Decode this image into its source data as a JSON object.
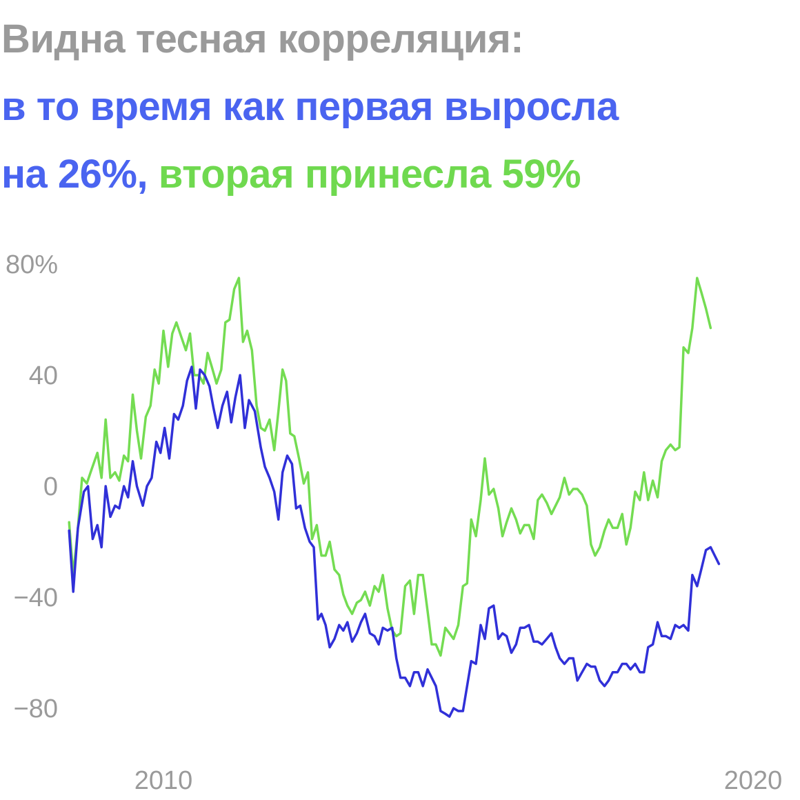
{
  "title": {
    "line1": "Видна тесная корреляция:",
    "line2": "в то время как первая выросла",
    "line3_blue": "на 26%,",
    "line3_green": "вторая принесла 59%"
  },
  "colors": {
    "blue_series": "#3030d8",
    "green_series": "#74dc52",
    "title_gray": "#9a9a9a",
    "title_blue": "#4a64f0",
    "title_green": "#6fd94f",
    "tick": "#9a9a9a"
  },
  "chart_data": {
    "type": "line",
    "title": "",
    "xlabel": "",
    "ylabel": "",
    "ylim": [
      -80,
      80
    ],
    "xlim": [
      2008.3,
      2020.5
    ],
    "y_ticks": [
      "80%",
      "40",
      "0",
      "−40",
      "−80"
    ],
    "y_tick_values": [
      80,
      40,
      0,
      -40,
      -80
    ],
    "x_ticks": [
      "2010",
      "2020"
    ],
    "x_tick_values": [
      2010,
      2020
    ],
    "grid": false,
    "legend": "none",
    "series": [
      {
        "values": [
          [
            2008.4,
            -16
          ],
          [
            2008.47,
            -38
          ],
          [
            2008.55,
            -15
          ],
          [
            2008.65,
            -2
          ],
          [
            2008.72,
            0
          ],
          [
            2008.8,
            -19
          ],
          [
            2008.88,
            -14
          ],
          [
            2008.95,
            -22
          ],
          [
            2009.02,
            0
          ],
          [
            2009.1,
            -11
          ],
          [
            2009.18,
            -7
          ],
          [
            2009.25,
            -8
          ],
          [
            2009.33,
            0
          ],
          [
            2009.4,
            -4
          ],
          [
            2009.48,
            9
          ],
          [
            2009.55,
            0
          ],
          [
            2009.65,
            -7
          ],
          [
            2009.72,
            0
          ],
          [
            2009.8,
            3
          ],
          [
            2009.88,
            16
          ],
          [
            2009.95,
            12
          ],
          [
            2010.02,
            21
          ],
          [
            2010.1,
            10
          ],
          [
            2010.18,
            26
          ],
          [
            2010.25,
            24
          ],
          [
            2010.33,
            29
          ],
          [
            2010.4,
            38
          ],
          [
            2010.48,
            43
          ],
          [
            2010.55,
            28
          ],
          [
            2010.62,
            42
          ],
          [
            2010.7,
            40
          ],
          [
            2010.78,
            36
          ],
          [
            2010.85,
            28
          ],
          [
            2010.92,
            21
          ],
          [
            2011.0,
            29
          ],
          [
            2011.08,
            34
          ],
          [
            2011.15,
            23
          ],
          [
            2011.22,
            32
          ],
          [
            2011.3,
            40
          ],
          [
            2011.38,
            21
          ],
          [
            2011.45,
            31
          ],
          [
            2011.55,
            27
          ],
          [
            2011.65,
            14
          ],
          [
            2011.72,
            7
          ],
          [
            2011.8,
            3
          ],
          [
            2011.88,
            -2
          ],
          [
            2011.95,
            -12
          ],
          [
            2012.02,
            5
          ],
          [
            2012.1,
            11
          ],
          [
            2012.18,
            8
          ],
          [
            2012.25,
            -8
          ],
          [
            2012.32,
            -7
          ],
          [
            2012.4,
            -15
          ],
          [
            2012.48,
            -20
          ],
          [
            2012.55,
            -22
          ],
          [
            2012.62,
            -48
          ],
          [
            2012.68,
            -46
          ],
          [
            2012.75,
            -50
          ],
          [
            2012.82,
            -58
          ],
          [
            2012.9,
            -55
          ],
          [
            2012.98,
            -50
          ],
          [
            2013.05,
            -52
          ],
          [
            2013.12,
            -49
          ],
          [
            2013.2,
            -56
          ],
          [
            2013.28,
            -53
          ],
          [
            2013.35,
            -49
          ],
          [
            2013.42,
            -46
          ],
          [
            2013.5,
            -53
          ],
          [
            2013.58,
            -54
          ],
          [
            2013.65,
            -57
          ],
          [
            2013.72,
            -51
          ],
          [
            2013.8,
            -52
          ],
          [
            2013.88,
            -51
          ],
          [
            2013.95,
            -62
          ],
          [
            2014.02,
            -69
          ],
          [
            2014.1,
            -69
          ],
          [
            2014.18,
            -72
          ],
          [
            2014.25,
            -67
          ],
          [
            2014.32,
            -67
          ],
          [
            2014.4,
            -72
          ],
          [
            2014.48,
            -66
          ],
          [
            2014.55,
            -69
          ],
          [
            2014.62,
            -72
          ],
          [
            2014.7,
            -81
          ],
          [
            2014.78,
            -82
          ],
          [
            2014.85,
            -83
          ],
          [
            2014.92,
            -80
          ],
          [
            2015.0,
            -81
          ],
          [
            2015.08,
            -81
          ],
          [
            2015.15,
            -72
          ],
          [
            2015.22,
            -63
          ],
          [
            2015.3,
            -64
          ],
          [
            2015.38,
            -50
          ],
          [
            2015.45,
            -55
          ],
          [
            2015.52,
            -44
          ],
          [
            2015.6,
            -43
          ],
          [
            2015.68,
            -55
          ],
          [
            2015.75,
            -53
          ],
          [
            2015.82,
            -54
          ],
          [
            2015.9,
            -60
          ],
          [
            2015.98,
            -57
          ],
          [
            2016.05,
            -51
          ],
          [
            2016.12,
            -51
          ],
          [
            2016.2,
            -50
          ],
          [
            2016.28,
            -56
          ],
          [
            2016.35,
            -56
          ],
          [
            2016.42,
            -57
          ],
          [
            2016.5,
            -55
          ],
          [
            2016.58,
            -53
          ],
          [
            2016.65,
            -58
          ],
          [
            2016.72,
            -62
          ],
          [
            2016.8,
            -64
          ],
          [
            2016.88,
            -62
          ],
          [
            2016.95,
            -62
          ],
          [
            2017.02,
            -70
          ],
          [
            2017.1,
            -67
          ],
          [
            2017.18,
            -64
          ],
          [
            2017.25,
            -65
          ],
          [
            2017.32,
            -65
          ],
          [
            2017.4,
            -70
          ],
          [
            2017.48,
            -72
          ],
          [
            2017.55,
            -70
          ],
          [
            2017.62,
            -67
          ],
          [
            2017.7,
            -67
          ],
          [
            2017.78,
            -64
          ],
          [
            2017.85,
            -64
          ],
          [
            2017.92,
            -66
          ],
          [
            2018.0,
            -64
          ],
          [
            2018.08,
            -67
          ],
          [
            2018.15,
            -67
          ],
          [
            2018.22,
            -58
          ],
          [
            2018.3,
            -57
          ],
          [
            2018.38,
            -49
          ],
          [
            2018.45,
            -54
          ],
          [
            2018.52,
            -54
          ],
          [
            2018.6,
            -55
          ],
          [
            2018.68,
            -50
          ],
          [
            2018.75,
            -51
          ],
          [
            2018.82,
            -50
          ],
          [
            2018.9,
            -52
          ],
          [
            2018.97,
            -32
          ],
          [
            2019.05,
            -36
          ],
          [
            2019.12,
            -30
          ],
          [
            2019.2,
            -23
          ],
          [
            2019.28,
            -22
          ],
          [
            2019.35,
            -25
          ],
          [
            2019.42,
            -28
          ]
        ]
      },
      {
        "values": [
          [
            2008.4,
            -13
          ],
          [
            2008.47,
            -32
          ],
          [
            2008.55,
            -15
          ],
          [
            2008.62,
            3
          ],
          [
            2008.7,
            1
          ],
          [
            2008.78,
            6
          ],
          [
            2008.88,
            12
          ],
          [
            2008.95,
            3
          ],
          [
            2009.02,
            24
          ],
          [
            2009.1,
            3
          ],
          [
            2009.18,
            5
          ],
          [
            2009.25,
            2
          ],
          [
            2009.33,
            11
          ],
          [
            2009.4,
            9
          ],
          [
            2009.48,
            33
          ],
          [
            2009.55,
            20
          ],
          [
            2009.62,
            10
          ],
          [
            2009.7,
            25
          ],
          [
            2009.78,
            29
          ],
          [
            2009.85,
            42
          ],
          [
            2009.92,
            37
          ],
          [
            2010.0,
            56
          ],
          [
            2010.08,
            43
          ],
          [
            2010.15,
            55
          ],
          [
            2010.22,
            59
          ],
          [
            2010.3,
            54
          ],
          [
            2010.38,
            49
          ],
          [
            2010.45,
            55
          ],
          [
            2010.52,
            40
          ],
          [
            2010.6,
            40
          ],
          [
            2010.68,
            37
          ],
          [
            2010.75,
            48
          ],
          [
            2010.82,
            43
          ],
          [
            2010.9,
            37
          ],
          [
            2010.98,
            42
          ],
          [
            2011.05,
            59
          ],
          [
            2011.12,
            60
          ],
          [
            2011.2,
            71
          ],
          [
            2011.28,
            75
          ],
          [
            2011.35,
            52
          ],
          [
            2011.42,
            56
          ],
          [
            2011.5,
            49
          ],
          [
            2011.58,
            29
          ],
          [
            2011.65,
            21
          ],
          [
            2011.72,
            20
          ],
          [
            2011.8,
            24
          ],
          [
            2011.88,
            13
          ],
          [
            2011.95,
            27
          ],
          [
            2012.02,
            42
          ],
          [
            2012.08,
            38
          ],
          [
            2012.15,
            19
          ],
          [
            2012.22,
            18
          ],
          [
            2012.3,
            10
          ],
          [
            2012.38,
            1
          ],
          [
            2012.45,
            5
          ],
          [
            2012.52,
            -19
          ],
          [
            2012.6,
            -14
          ],
          [
            2012.68,
            -25
          ],
          [
            2012.75,
            -25
          ],
          [
            2012.82,
            -20
          ],
          [
            2012.9,
            -30
          ],
          [
            2012.98,
            -32
          ],
          [
            2013.05,
            -39
          ],
          [
            2013.12,
            -43
          ],
          [
            2013.2,
            -46
          ],
          [
            2013.28,
            -42
          ],
          [
            2013.35,
            -41
          ],
          [
            2013.42,
            -38
          ],
          [
            2013.5,
            -43
          ],
          [
            2013.58,
            -36
          ],
          [
            2013.65,
            -38
          ],
          [
            2013.72,
            -32
          ],
          [
            2013.8,
            -44
          ],
          [
            2013.88,
            -52
          ],
          [
            2013.95,
            -54
          ],
          [
            2014.02,
            -53
          ],
          [
            2014.1,
            -36
          ],
          [
            2014.18,
            -34
          ],
          [
            2014.25,
            -46
          ],
          [
            2014.32,
            -32
          ],
          [
            2014.4,
            -32
          ],
          [
            2014.48,
            -45
          ],
          [
            2014.55,
            -57
          ],
          [
            2014.62,
            -57
          ],
          [
            2014.7,
            -61
          ],
          [
            2014.78,
            -51
          ],
          [
            2014.85,
            -53
          ],
          [
            2014.92,
            -55
          ],
          [
            2015.0,
            -50
          ],
          [
            2015.08,
            -36
          ],
          [
            2015.15,
            -35
          ],
          [
            2015.22,
            -12
          ],
          [
            2015.3,
            -18
          ],
          [
            2015.38,
            -5
          ],
          [
            2015.45,
            10
          ],
          [
            2015.52,
            -3
          ],
          [
            2015.6,
            -1
          ],
          [
            2015.68,
            -8
          ],
          [
            2015.75,
            -18
          ],
          [
            2015.82,
            -13
          ],
          [
            2015.9,
            -8
          ],
          [
            2015.98,
            -12
          ],
          [
            2016.05,
            -17
          ],
          [
            2016.12,
            -14
          ],
          [
            2016.2,
            -14
          ],
          [
            2016.28,
            -19
          ],
          [
            2016.35,
            -5
          ],
          [
            2016.42,
            -3
          ],
          [
            2016.5,
            -6
          ],
          [
            2016.58,
            -10
          ],
          [
            2016.65,
            -7
          ],
          [
            2016.72,
            -4
          ],
          [
            2016.8,
            3
          ],
          [
            2016.88,
            -3
          ],
          [
            2016.95,
            -1
          ],
          [
            2017.02,
            -1
          ],
          [
            2017.1,
            -3
          ],
          [
            2017.18,
            -7
          ],
          [
            2017.25,
            -21
          ],
          [
            2017.32,
            -25
          ],
          [
            2017.4,
            -22
          ],
          [
            2017.48,
            -16
          ],
          [
            2017.55,
            -12
          ],
          [
            2017.62,
            -15
          ],
          [
            2017.7,
            -15
          ],
          [
            2017.78,
            -10
          ],
          [
            2017.85,
            -21
          ],
          [
            2017.92,
            -15
          ],
          [
            2018.0,
            -2
          ],
          [
            2018.08,
            -5
          ],
          [
            2018.15,
            5
          ],
          [
            2018.22,
            -5
          ],
          [
            2018.3,
            2
          ],
          [
            2018.38,
            -4
          ],
          [
            2018.45,
            9
          ],
          [
            2018.52,
            13
          ],
          [
            2018.6,
            15
          ],
          [
            2018.68,
            13
          ],
          [
            2018.75,
            14
          ],
          [
            2018.82,
            50
          ],
          [
            2018.9,
            48
          ],
          [
            2018.97,
            57
          ],
          [
            2019.05,
            75
          ],
          [
            2019.12,
            70
          ],
          [
            2019.2,
            64
          ],
          [
            2019.28,
            57
          ]
        ]
      }
    ]
  }
}
